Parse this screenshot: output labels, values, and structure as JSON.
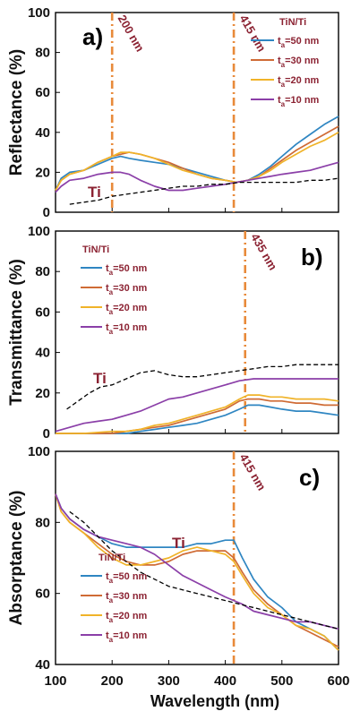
{
  "figure": {
    "xlabel": "Wavelength (nm)",
    "xlim": [
      100,
      600
    ],
    "xticks": [
      100,
      200,
      300,
      400,
      500,
      600
    ]
  },
  "colors": {
    "t50": "#2f86c2",
    "t30": "#cf6b35",
    "t20": "#f0b329",
    "t10": "#8b3fa8",
    "ti": "#000000",
    "vline": "#e88a3a",
    "annotation": "#8b2232"
  },
  "chart_data": [
    {
      "type": "line",
      "panel_label": "a)",
      "ylabel": "Reflectance (%)",
      "ylim": [
        0,
        100
      ],
      "yticks": [
        0,
        20,
        40,
        60,
        80,
        100
      ],
      "legend_title": "TiN/Ti",
      "legend_position": "top-right",
      "vlines": [
        {
          "x": 200,
          "label": "200 nm"
        },
        {
          "x": 415,
          "label": "415 nm"
        }
      ],
      "ti_label": "Ti",
      "series": [
        {
          "name": "t_a=50 nm",
          "key": "t50",
          "x": [
            100,
            110,
            125,
            150,
            175,
            200,
            215,
            230,
            250,
            275,
            300,
            325,
            350,
            375,
            400,
            420,
            440,
            460,
            480,
            500,
            525,
            550,
            575,
            600
          ],
          "y": [
            11,
            17,
            20,
            21,
            24,
            27,
            28,
            27,
            26,
            25,
            24,
            22,
            20,
            18,
            16,
            15,
            16,
            19,
            23,
            28,
            34,
            39,
            44,
            48
          ]
        },
        {
          "name": "t_a=30 nm",
          "key": "t30",
          "x": [
            100,
            110,
            125,
            150,
            175,
            200,
            215,
            230,
            250,
            275,
            300,
            325,
            350,
            375,
            400,
            420,
            440,
            460,
            480,
            500,
            525,
            550,
            575,
            600
          ],
          "y": [
            11,
            16,
            19,
            21,
            25,
            28,
            29,
            30,
            29,
            27,
            25,
            22,
            19,
            17,
            16,
            15,
            16,
            18,
            22,
            26,
            31,
            35,
            39,
            43
          ]
        },
        {
          "name": "t_a=20 nm",
          "key": "t20",
          "x": [
            100,
            110,
            125,
            150,
            175,
            200,
            215,
            230,
            250,
            275,
            300,
            325,
            350,
            375,
            400,
            420,
            440,
            460,
            480,
            500,
            525,
            550,
            575,
            600
          ],
          "y": [
            11,
            16,
            19,
            21,
            25,
            28,
            30,
            30,
            29,
            27,
            24,
            21,
            19,
            17,
            16,
            15,
            16,
            18,
            21,
            25,
            29,
            33,
            36,
            40
          ]
        },
        {
          "name": "t_a=10 nm",
          "key": "t10",
          "x": [
            100,
            110,
            125,
            150,
            175,
            200,
            215,
            230,
            250,
            275,
            300,
            325,
            350,
            375,
            400,
            420,
            440,
            460,
            480,
            500,
            525,
            550,
            575,
            600
          ],
          "y": [
            10,
            13,
            16,
            17,
            19,
            20,
            20,
            19,
            16,
            13,
            11,
            11,
            12,
            13,
            14,
            15,
            16,
            17,
            18,
            19,
            20,
            21,
            23,
            25
          ]
        },
        {
          "key": "ti",
          "dashed": true,
          "x": [
            125,
            150,
            175,
            200,
            225,
            250,
            275,
            300,
            325,
            350,
            375,
            400,
            425,
            450,
            475,
            500,
            525,
            550,
            575,
            600
          ],
          "y": [
            4,
            5,
            6,
            8,
            9,
            10,
            11,
            12,
            13,
            13,
            14,
            14,
            15,
            15,
            15,
            15,
            15,
            16,
            16,
            17
          ]
        }
      ]
    },
    {
      "type": "line",
      "panel_label": "b)",
      "ylabel": "Transmittance (%)",
      "ylim": [
        0,
        100
      ],
      "yticks": [
        0,
        20,
        40,
        60,
        80,
        100
      ],
      "legend_title": "TiN/Ti",
      "legend_position": "top-left",
      "vlines": [
        {
          "x": 435,
          "label": "435 nm"
        }
      ],
      "ti_label": "Ti",
      "series": [
        {
          "name": "t_a=50 nm",
          "key": "t50",
          "x": [
            100,
            150,
            200,
            225,
            250,
            275,
            300,
            325,
            350,
            375,
            400,
            425,
            440,
            460,
            480,
            500,
            525,
            550,
            575,
            600
          ],
          "y": [
            0,
            0,
            0,
            0,
            1,
            2,
            3,
            4,
            5,
            7,
            9,
            12,
            14,
            14,
            13,
            12,
            11,
            11,
            10,
            9
          ]
        },
        {
          "name": "t_a=30 nm",
          "key": "t30",
          "x": [
            100,
            150,
            200,
            225,
            250,
            275,
            300,
            325,
            350,
            375,
            400,
            425,
            440,
            460,
            480,
            500,
            525,
            550,
            575,
            600
          ],
          "y": [
            0,
            0,
            0,
            1,
            2,
            3,
            4,
            6,
            8,
            10,
            12,
            16,
            17,
            17,
            16,
            16,
            15,
            15,
            14,
            14
          ]
        },
        {
          "name": "t_a=20 nm",
          "key": "t20",
          "x": [
            100,
            150,
            200,
            225,
            250,
            275,
            300,
            325,
            350,
            375,
            400,
            425,
            440,
            460,
            480,
            500,
            525,
            550,
            575,
            600
          ],
          "y": [
            0,
            0,
            1,
            1,
            2,
            4,
            5,
            7,
            9,
            11,
            13,
            17,
            19,
            19,
            18,
            18,
            17,
            17,
            17,
            16
          ]
        },
        {
          "name": "t_a=10 nm",
          "key": "t10",
          "x": [
            100,
            125,
            150,
            175,
            200,
            225,
            250,
            275,
            300,
            325,
            350,
            375,
            400,
            425,
            450,
            475,
            500,
            525,
            550,
            575,
            600
          ],
          "y": [
            1,
            3,
            5,
            6,
            7,
            9,
            11,
            14,
            17,
            18,
            20,
            22,
            24,
            26,
            27,
            27,
            27,
            27,
            27,
            27,
            27
          ]
        },
        {
          "key": "ti",
          "dashed": true,
          "x": [
            120,
            140,
            160,
            180,
            200,
            225,
            250,
            275,
            300,
            325,
            350,
            375,
            400,
            425,
            450,
            475,
            500,
            525,
            550,
            575,
            600
          ],
          "y": [
            12,
            16,
            20,
            23,
            24,
            27,
            30,
            31,
            29,
            28,
            28,
            29,
            30,
            31,
            32,
            33,
            33,
            34,
            34,
            34,
            34
          ]
        }
      ]
    },
    {
      "type": "line",
      "panel_label": "c)",
      "ylabel": "Absorptance (%)",
      "ylim": [
        40,
        100
      ],
      "yticks": [
        40,
        60,
        80,
        100
      ],
      "legend_title": "TiN/Ti",
      "legend_position": "bottom-left",
      "vlines": [
        {
          "x": 415,
          "label": "415 nm"
        }
      ],
      "ti_label": "Ti",
      "series": [
        {
          "name": "t_a=50 nm",
          "key": "t50",
          "x": [
            100,
            110,
            125,
            150,
            175,
            200,
            225,
            250,
            275,
            300,
            325,
            350,
            375,
            400,
            415,
            430,
            450,
            475,
            500,
            525,
            550,
            575,
            600
          ],
          "y": [
            88,
            84,
            81,
            78,
            76,
            74,
            73,
            73,
            73,
            73,
            73,
            74,
            74,
            75,
            75,
            70,
            64,
            59,
            56,
            52,
            50,
            48,
            44
          ]
        },
        {
          "name": "t_a=30 nm",
          "key": "t30",
          "x": [
            100,
            110,
            125,
            150,
            175,
            200,
            225,
            250,
            275,
            300,
            325,
            350,
            375,
            400,
            415,
            430,
            450,
            475,
            500,
            525,
            550,
            575,
            600
          ],
          "y": [
            88,
            83,
            80,
            77,
            74,
            71,
            69,
            68,
            68,
            69,
            71,
            72,
            72,
            72,
            70,
            66,
            61,
            57,
            54,
            51,
            49,
            47,
            45
          ]
        },
        {
          "name": "t_a=20 nm",
          "key": "t20",
          "x": [
            100,
            110,
            125,
            150,
            175,
            200,
            225,
            250,
            275,
            300,
            325,
            350,
            375,
            400,
            415,
            430,
            450,
            475,
            500,
            525,
            550,
            575,
            600
          ],
          "y": [
            88,
            83,
            80,
            77,
            73,
            70,
            68,
            68,
            69,
            70,
            72,
            73,
            72,
            71,
            69,
            65,
            60,
            56,
            54,
            51,
            50,
            48,
            44
          ]
        },
        {
          "name": "t_a=10 nm",
          "key": "t10",
          "x": [
            100,
            110,
            125,
            150,
            175,
            200,
            225,
            250,
            275,
            300,
            325,
            350,
            375,
            400,
            415,
            430,
            450,
            475,
            500,
            525,
            550,
            575,
            600
          ],
          "y": [
            88,
            84,
            81,
            78,
            76,
            75,
            74,
            73,
            71,
            68,
            65,
            63,
            61,
            59,
            58,
            57,
            55,
            54,
            53,
            52,
            52,
            51,
            50
          ]
        },
        {
          "key": "ti",
          "dashed": true,
          "x": [
            125,
            150,
            175,
            200,
            225,
            250,
            275,
            300,
            325,
            350,
            375,
            400,
            425,
            450,
            475,
            500,
            525,
            550,
            575,
            600
          ],
          "y": [
            83,
            80,
            76,
            72,
            69,
            66,
            64,
            62,
            61,
            60,
            59,
            58,
            57,
            56,
            55,
            54,
            53,
            52,
            51,
            50
          ]
        }
      ]
    }
  ]
}
